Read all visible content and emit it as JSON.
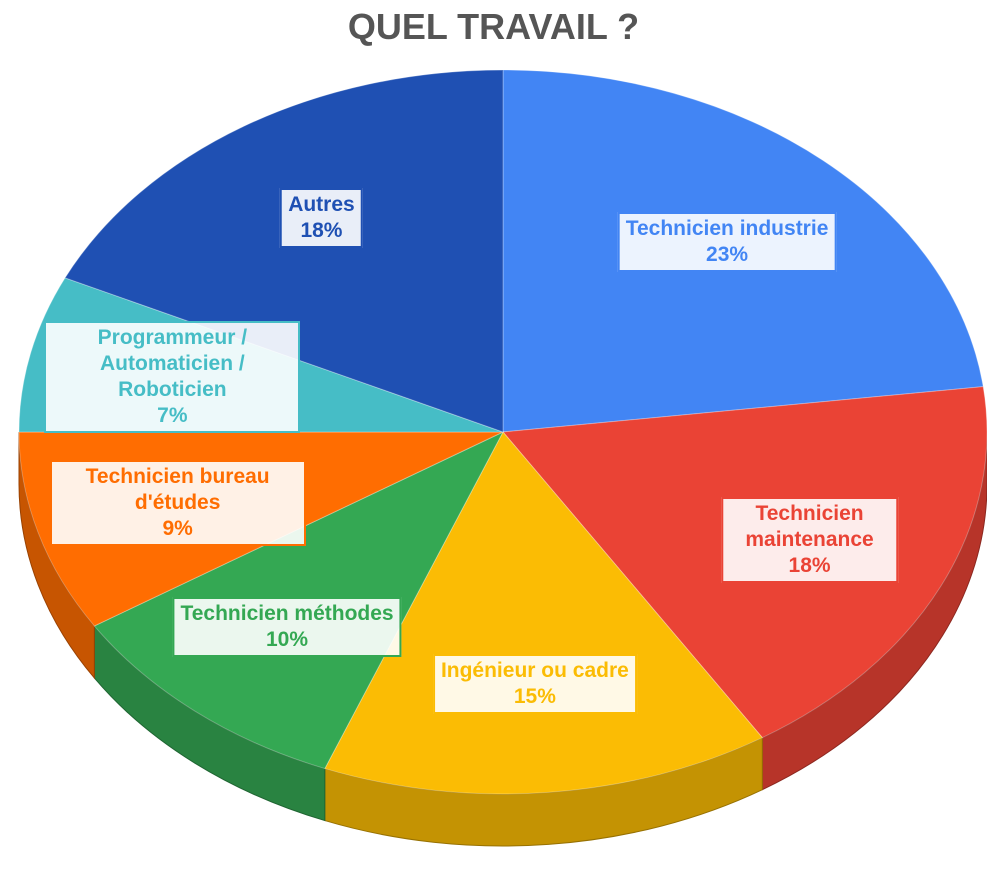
{
  "chart_data": {
    "type": "pie",
    "title": "QUEL TRAVAIL ?",
    "categories": [
      "Technicien industrie",
      "Technicien maintenance",
      "Ingénieur ou cadre",
      "Technicien méthodes",
      "Technicien bureau d'études",
      "Programmeur / Automaticien / Roboticien",
      "Autres"
    ],
    "values": [
      23,
      18,
      15,
      10,
      9,
      7,
      18
    ],
    "value_labels": [
      "23%",
      "18%",
      "15%",
      "10%",
      "9%",
      "7%",
      "18%"
    ],
    "colors": [
      "#4285f4",
      "#ea4335",
      "#fbbc04",
      "#34a853",
      "#ff6d01",
      "#46bdc6",
      "#1f50b3"
    ]
  }
}
